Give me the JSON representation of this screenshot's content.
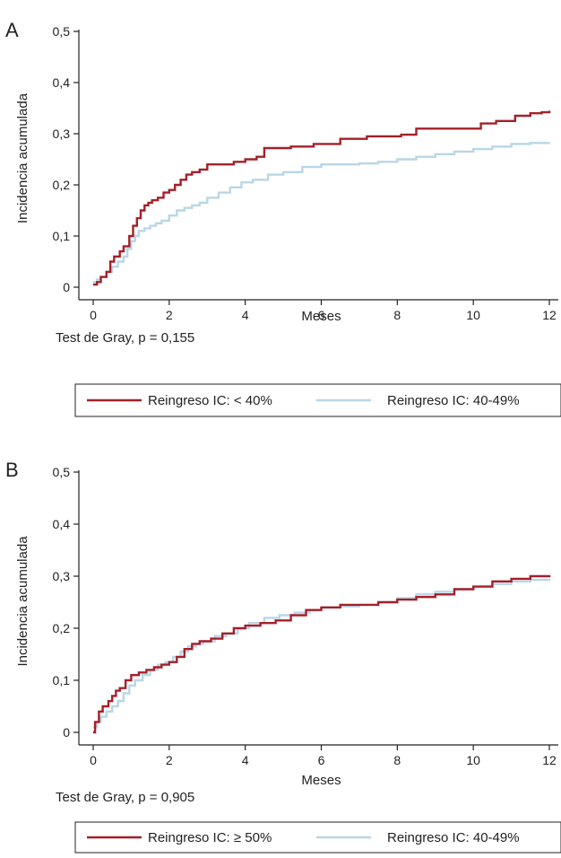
{
  "panels": [
    {
      "letter": "A",
      "note": "Test de Gray, p = 0,155",
      "legend": [
        "Reingreso IC: < 40%",
        "Reingreso IC: 40-49%"
      ]
    },
    {
      "letter": "B",
      "note": "Test de Gray, p = 0,905",
      "legend": [
        "Reingreso IC: ≥ 50%",
        "Reingreso IC: 40-49%"
      ]
    }
  ],
  "colors": {
    "series_primary": "#a3202a",
    "series_secondary": "#b9d6e6",
    "axis": "#222222"
  },
  "chart_data": [
    {
      "type": "line",
      "step": true,
      "xlabel": "Meses",
      "ylabel": "Incidencia acumulada",
      "xlim": [
        0,
        12
      ],
      "ylim": [
        0,
        0.5
      ],
      "xticks": [
        0,
        2,
        4,
        6,
        8,
        10,
        12
      ],
      "xtick_labels": [
        "0",
        "2",
        "4",
        "6",
        "8",
        "10",
        "12"
      ],
      "yticks": [
        0,
        0.1,
        0.2,
        0.3,
        0.4,
        0.5
      ],
      "ytick_labels": [
        "0",
        "0,1",
        "0,2",
        "0,3",
        "0,4",
        "0,5"
      ],
      "grid": false,
      "legend_position": "bottom",
      "series": [
        {
          "name": "Reingreso IC: < 40%",
          "color": "#a3202a",
          "x": [
            0,
            0.1,
            0.2,
            0.35,
            0.45,
            0.55,
            0.7,
            0.8,
            0.95,
            1.05,
            1.15,
            1.25,
            1.35,
            1.45,
            1.55,
            1.7,
            1.85,
            2.0,
            2.15,
            2.3,
            2.45,
            2.6,
            2.8,
            3.0,
            3.3,
            3.7,
            4.0,
            4.3,
            4.5,
            5.2,
            5.8,
            6.5,
            7.2,
            8.1,
            8.5,
            9.2,
            9.8,
            10.2,
            10.6,
            11.1,
            11.5,
            11.8,
            12.0
          ],
          "y": [
            0.005,
            0.01,
            0.02,
            0.03,
            0.05,
            0.06,
            0.07,
            0.08,
            0.1,
            0.12,
            0.135,
            0.15,
            0.16,
            0.165,
            0.17,
            0.175,
            0.185,
            0.19,
            0.2,
            0.21,
            0.22,
            0.225,
            0.23,
            0.24,
            0.24,
            0.245,
            0.25,
            0.255,
            0.272,
            0.275,
            0.28,
            0.29,
            0.295,
            0.298,
            0.31,
            0.31,
            0.31,
            0.32,
            0.325,
            0.335,
            0.34,
            0.342,
            0.345
          ]
        },
        {
          "name": "Reingreso IC: 40-49%",
          "color": "#b9d6e6",
          "x": [
            0,
            0.1,
            0.2,
            0.35,
            0.5,
            0.65,
            0.8,
            0.9,
            1.0,
            1.1,
            1.2,
            1.35,
            1.5,
            1.65,
            1.8,
            2.0,
            2.2,
            2.4,
            2.6,
            2.8,
            3.0,
            3.3,
            3.6,
            3.9,
            4.2,
            4.6,
            5.0,
            5.5,
            6.0,
            6.5,
            7.0,
            7.5,
            8.0,
            8.5,
            9.0,
            9.5,
            10.0,
            10.5,
            11.0,
            11.5,
            12.0
          ],
          "y": [
            0.01,
            0.015,
            0.02,
            0.03,
            0.04,
            0.05,
            0.06,
            0.075,
            0.09,
            0.1,
            0.11,
            0.115,
            0.12,
            0.125,
            0.13,
            0.14,
            0.15,
            0.155,
            0.16,
            0.165,
            0.175,
            0.185,
            0.195,
            0.205,
            0.21,
            0.22,
            0.225,
            0.235,
            0.24,
            0.24,
            0.242,
            0.245,
            0.25,
            0.255,
            0.26,
            0.265,
            0.27,
            0.275,
            0.28,
            0.282,
            0.283
          ]
        }
      ]
    },
    {
      "type": "line",
      "step": true,
      "xlabel": "Meses",
      "ylabel": "Incidencia acumulada",
      "xlim": [
        0,
        12
      ],
      "ylim": [
        0,
        0.5
      ],
      "xticks": [
        0,
        2,
        4,
        6,
        8,
        10,
        12
      ],
      "xtick_labels": [
        "0",
        "2",
        "4",
        "6",
        "8",
        "10",
        "12"
      ],
      "yticks": [
        0,
        0.1,
        0.2,
        0.3,
        0.4,
        0.5
      ],
      "ytick_labels": [
        "0",
        "0,1",
        "0,2",
        "0,3",
        "0,4",
        "0,5"
      ],
      "grid": false,
      "legend_position": "bottom",
      "series": [
        {
          "name": "Reingreso IC: ≥ 50%",
          "color": "#a3202a",
          "x": [
            0,
            0.05,
            0.15,
            0.25,
            0.4,
            0.5,
            0.6,
            0.7,
            0.85,
            1.0,
            1.2,
            1.4,
            1.6,
            1.8,
            2.0,
            2.2,
            2.4,
            2.6,
            2.8,
            3.1,
            3.4,
            3.7,
            4.0,
            4.4,
            4.8,
            5.2,
            5.6,
            6.0,
            6.5,
            7.0,
            7.5,
            8.0,
            8.5,
            9.0,
            9.5,
            10.0,
            10.5,
            11.0,
            11.5,
            12.0
          ],
          "y": [
            0.0,
            0.02,
            0.04,
            0.05,
            0.06,
            0.07,
            0.08,
            0.085,
            0.1,
            0.11,
            0.115,
            0.12,
            0.125,
            0.13,
            0.135,
            0.145,
            0.16,
            0.17,
            0.175,
            0.18,
            0.19,
            0.2,
            0.205,
            0.21,
            0.215,
            0.225,
            0.235,
            0.24,
            0.245,
            0.245,
            0.25,
            0.255,
            0.26,
            0.265,
            0.275,
            0.28,
            0.29,
            0.295,
            0.3,
            0.302
          ]
        },
        {
          "name": "Reingreso IC: 40-49%",
          "color": "#b9d6e6",
          "x": [
            0,
            0.1,
            0.2,
            0.35,
            0.5,
            0.65,
            0.8,
            0.95,
            1.1,
            1.3,
            1.5,
            1.7,
            1.9,
            2.1,
            2.3,
            2.5,
            2.7,
            2.9,
            3.2,
            3.5,
            3.8,
            4.1,
            4.5,
            4.9,
            5.3,
            5.7,
            6.0,
            6.5,
            7.0,
            7.5,
            8.0,
            8.5,
            9.0,
            9.5,
            10.0,
            10.5,
            11.0,
            11.5,
            12.0
          ],
          "y": [
            0.01,
            0.02,
            0.03,
            0.04,
            0.05,
            0.06,
            0.075,
            0.09,
            0.1,
            0.11,
            0.12,
            0.13,
            0.135,
            0.145,
            0.155,
            0.165,
            0.17,
            0.175,
            0.185,
            0.19,
            0.2,
            0.21,
            0.22,
            0.225,
            0.23,
            0.235,
            0.24,
            0.242,
            0.245,
            0.25,
            0.258,
            0.265,
            0.27,
            0.275,
            0.28,
            0.285,
            0.29,
            0.293,
            0.295
          ]
        }
      ]
    }
  ]
}
